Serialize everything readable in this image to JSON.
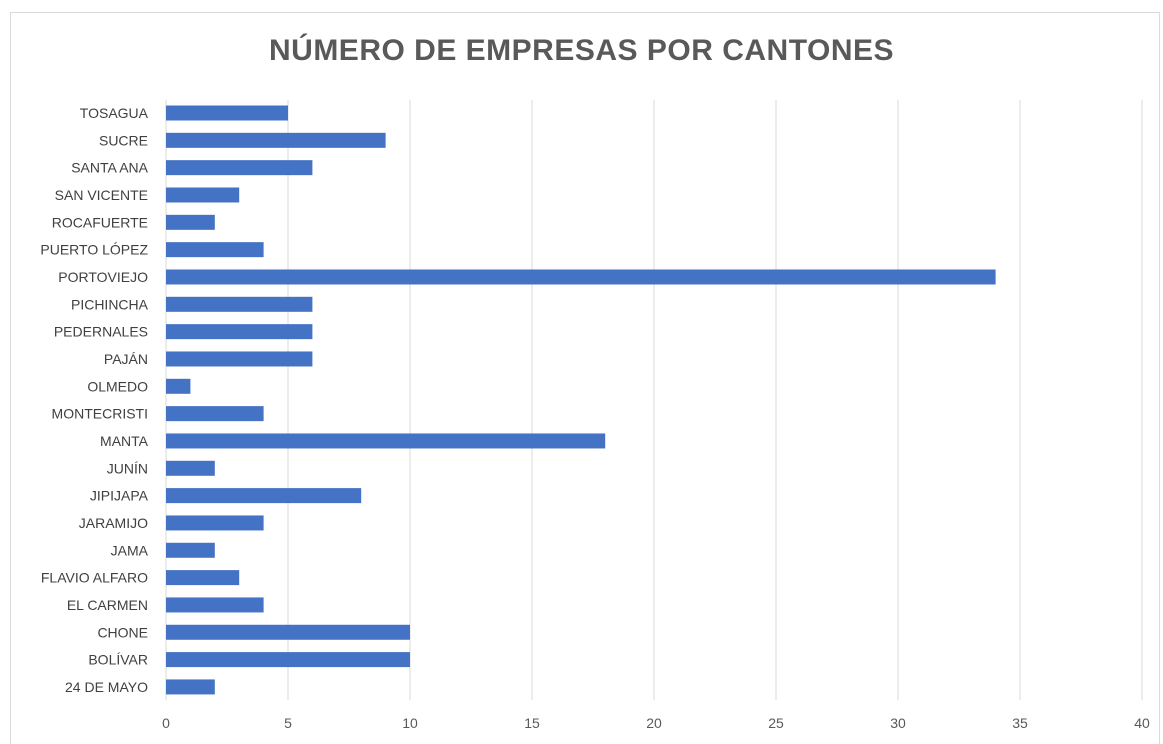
{
  "chart_data": {
    "type": "bar",
    "orientation": "horizontal",
    "title": "NÚMERO DE EMPRESAS POR CANTONES",
    "xlabel": "",
    "ylabel": "",
    "xlim": [
      0,
      40
    ],
    "xticks": [
      0,
      5,
      10,
      15,
      20,
      25,
      30,
      35,
      40
    ],
    "grid": "vertical",
    "legend": "none",
    "bar_color": "#4472c4",
    "categories": [
      "TOSAGUA",
      "SUCRE",
      "SANTA ANA",
      "SAN VICENTE",
      "ROCAFUERTE",
      "PUERTO LÓPEZ",
      "PORTOVIEJO",
      "PICHINCHA",
      "PEDERNALES",
      "PAJÁN",
      "OLMEDO",
      "MONTECRISTI",
      "MANTA",
      "JUNÍN",
      "JIPIJAPA",
      "JARAMIJO",
      "JAMA",
      "FLAVIO ALFARO",
      "EL CARMEN",
      "CHONE",
      "BOLÍVAR",
      "24 DE MAYO"
    ],
    "values": [
      5,
      9,
      6,
      3,
      2,
      4,
      34,
      6,
      6,
      6,
      1,
      4,
      18,
      2,
      8,
      4,
      2,
      3,
      4,
      10,
      10,
      2
    ]
  }
}
